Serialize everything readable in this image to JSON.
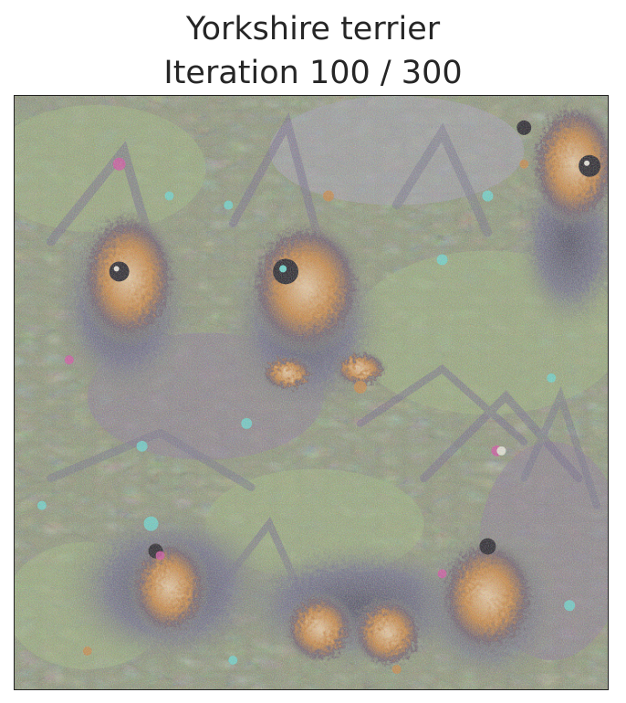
{
  "figure": {
    "title_line1": "Yorkshire terrier",
    "title_line2": "Iteration 100 / 300"
  },
  "image": {
    "subject": "Yorkshire terrier",
    "dominant_colors": {
      "base": "#8d9176",
      "green": "#9fb37b",
      "purple": "#8a7596",
      "orange": "#c9823f",
      "dark": "#2a2431",
      "cyan": "#66d6d0",
      "pink": "#d24aa0",
      "white": "#f4efe5"
    }
  }
}
